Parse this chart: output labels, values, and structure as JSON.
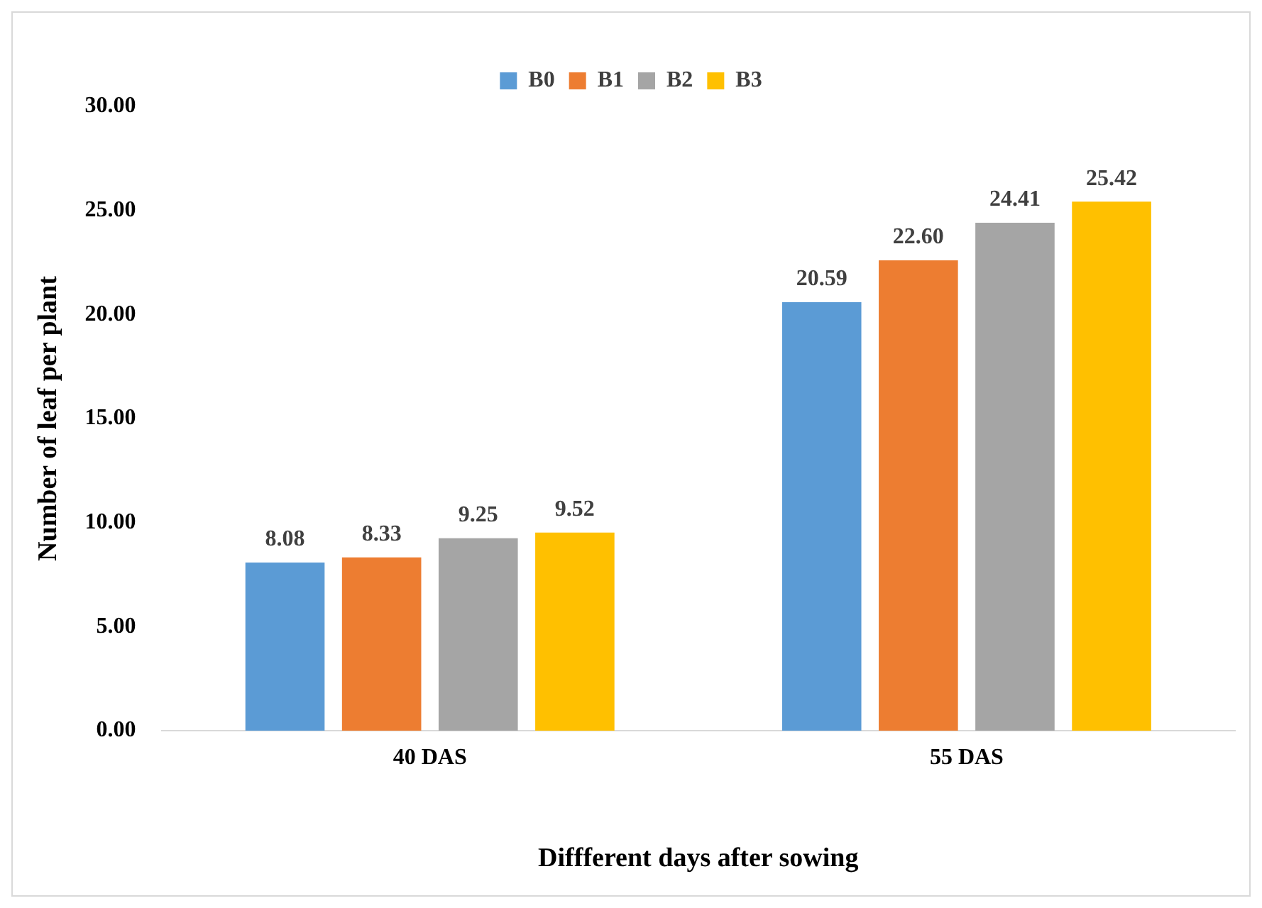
{
  "chart_data": {
    "type": "bar",
    "xlabel": "Diffferent days after sowing",
    "ylabel": "Number of leaf per plant",
    "categories": [
      "40 DAS",
      "55 DAS"
    ],
    "series": [
      {
        "name": "B0",
        "color": "#5b9bd5",
        "values": [
          8.08,
          20.59
        ]
      },
      {
        "name": "B1",
        "color": "#ed7d31",
        "values": [
          8.33,
          22.6
        ]
      },
      {
        "name": "B2",
        "color": "#a5a5a5",
        "values": [
          9.25,
          24.41
        ]
      },
      {
        "name": "B3",
        "color": "#ffc000",
        "values": [
          9.52,
          25.42
        ]
      }
    ],
    "ylim": [
      0,
      30
    ],
    "yticks": [
      {
        "value": 0,
        "label": "0.00"
      },
      {
        "value": 5,
        "label": "5.00"
      },
      {
        "value": 10,
        "label": "10.00"
      },
      {
        "value": 15,
        "label": "15.00"
      },
      {
        "value": 20,
        "label": "20.00"
      },
      {
        "value": 25,
        "label": "25.00"
      },
      {
        "value": 30,
        "label": "30.00"
      }
    ],
    "value_labels": [
      [
        "8.08",
        "20.59"
      ],
      [
        "8.33",
        "22.60"
      ],
      [
        "9.25",
        "24.41"
      ],
      [
        "9.52",
        "25.42"
      ]
    ],
    "grid": false,
    "legend": "top"
  }
}
